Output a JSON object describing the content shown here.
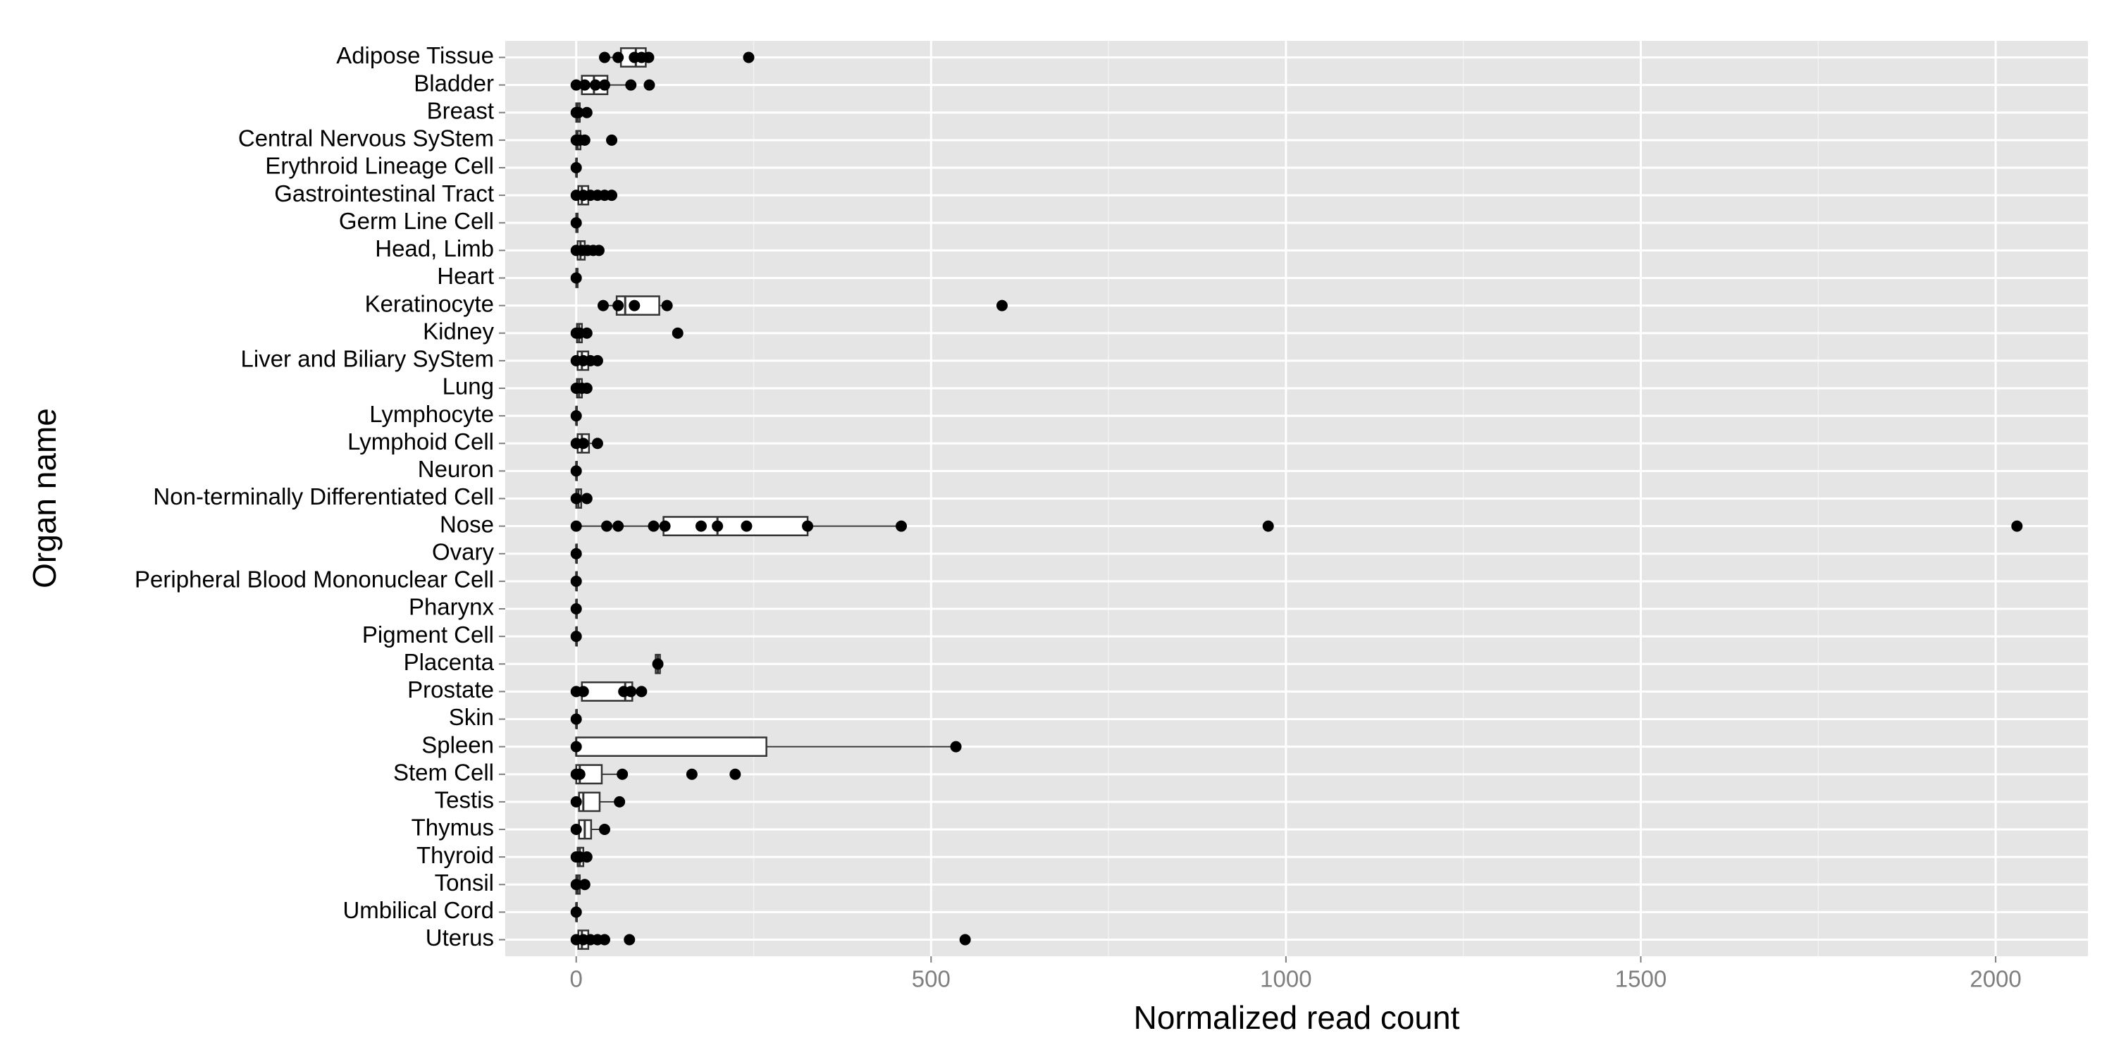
{
  "chart_data": {
    "type": "box",
    "orientation": "horizontal",
    "x_label": "Normalized read count",
    "y_label": "Organ name",
    "categories": [
      "Adipose Tissue",
      "Bladder",
      "Breast",
      "Central Nervous SyStem",
      "Erythroid Lineage Cell",
      "Gastrointestinal Tract",
      "Germ Line Cell",
      "Head, Limb",
      "Heart",
      "Keratinocyte",
      "Kidney",
      "Liver and Biliary SyStem",
      "Lung",
      "Lymphocyte",
      "Lymphoid Cell",
      "Neuron",
      "Non-terminally Differentiated Cell",
      "Nose",
      "Ovary",
      "Peripheral Blood Mononuclear Cell",
      "Pharynx",
      "Pigment Cell",
      "Placenta",
      "Prostate",
      "Skin",
      "Spleen",
      "Stem Cell",
      "Testis",
      "Thymus",
      "Thyroid",
      "Tonsil",
      "Umbilical Cord",
      "Uterus"
    ],
    "boxes": [
      [
        40,
        63,
        84,
        98,
        102
      ],
      [
        0,
        8,
        25,
        44,
        77
      ],
      [
        0,
        0,
        2,
        5,
        15
      ],
      [
        0,
        0,
        2,
        6,
        12
      ],
      [
        0,
        0,
        0,
        1,
        2
      ],
      [
        0,
        3,
        8,
        17,
        50
      ],
      [
        0,
        0,
        1,
        2,
        3
      ],
      [
        0,
        2,
        6,
        12,
        30
      ],
      [
        0,
        0,
        1,
        2,
        3
      ],
      [
        38,
        57,
        69,
        117,
        128
      ],
      [
        0,
        1,
        4,
        8,
        15
      ],
      [
        0,
        2,
        8,
        17,
        30
      ],
      [
        0,
        1,
        4,
        8,
        15
      ],
      [
        0,
        0,
        0,
        1,
        2
      ],
      [
        0,
        2,
        8,
        18,
        30
      ],
      [
        0,
        0,
        0,
        1,
        2
      ],
      [
        0,
        0,
        3,
        7,
        15
      ],
      [
        0,
        123,
        199,
        326,
        458
      ],
      [
        0,
        0,
        0,
        1,
        2
      ],
      [
        0,
        0,
        0,
        1,
        2
      ],
      [
        0,
        0,
        0,
        1,
        2
      ],
      [
        0,
        0,
        0,
        1,
        2
      ],
      [
        110,
        112,
        115,
        118,
        120
      ],
      [
        0,
        8,
        69,
        79,
        92
      ],
      [
        0,
        0,
        0,
        1,
        2
      ],
      [
        0,
        0,
        0,
        268,
        535
      ],
      [
        0,
        0,
        5,
        36,
        65
      ],
      [
        0,
        4,
        10,
        33,
        61
      ],
      [
        0,
        4,
        12,
        21,
        40
      ],
      [
        0,
        2,
        5,
        10,
        15
      ],
      [
        0,
        0,
        2,
        5,
        12
      ],
      [
        0,
        0,
        0,
        1,
        2
      ],
      [
        0,
        3,
        8,
        17,
        40
      ]
    ],
    "points": [
      [
        40,
        59,
        82,
        92,
        102,
        243
      ],
      [
        0,
        12,
        27,
        40,
        77,
        103
      ],
      [
        0,
        3,
        15
      ],
      [
        0,
        5,
        12,
        50
      ],
      [
        0
      ],
      [
        0,
        10,
        20,
        30,
        40,
        50
      ],
      [
        0
      ],
      [
        0,
        8,
        16,
        24,
        32
      ],
      [
        0
      ],
      [
        38,
        59,
        82,
        128,
        600
      ],
      [
        0,
        5,
        15,
        143
      ],
      [
        0,
        10,
        20,
        30
      ],
      [
        0,
        8,
        15
      ],
      [
        0
      ],
      [
        0,
        10,
        30
      ],
      [
        0
      ],
      [
        0,
        15
      ],
      [
        0,
        43,
        59,
        109,
        125,
        176,
        199,
        240,
        326,
        458,
        975,
        2030
      ],
      [
        0
      ],
      [
        0
      ],
      [
        0
      ],
      [
        0
      ],
      [
        115
      ],
      [
        0,
        10,
        67,
        77,
        92
      ],
      [
        0
      ],
      [
        0,
        535
      ],
      [
        0,
        5,
        65,
        163,
        224
      ],
      [
        0,
        61
      ],
      [
        0,
        40
      ],
      [
        0,
        5,
        15
      ],
      [
        0,
        12
      ],
      [
        0
      ],
      [
        0,
        10,
        20,
        30,
        40,
        75,
        548
      ]
    ],
    "xlim": [
      -100,
      2130
    ],
    "xticks": [
      0,
      500,
      1000,
      1500,
      2000
    ],
    "x_minor_grid": [
      250,
      750,
      1250,
      1750
    ],
    "grid": true,
    "background": "#e5e5e5",
    "box_fill": "#ffffff",
    "point_color": "#000000"
  }
}
